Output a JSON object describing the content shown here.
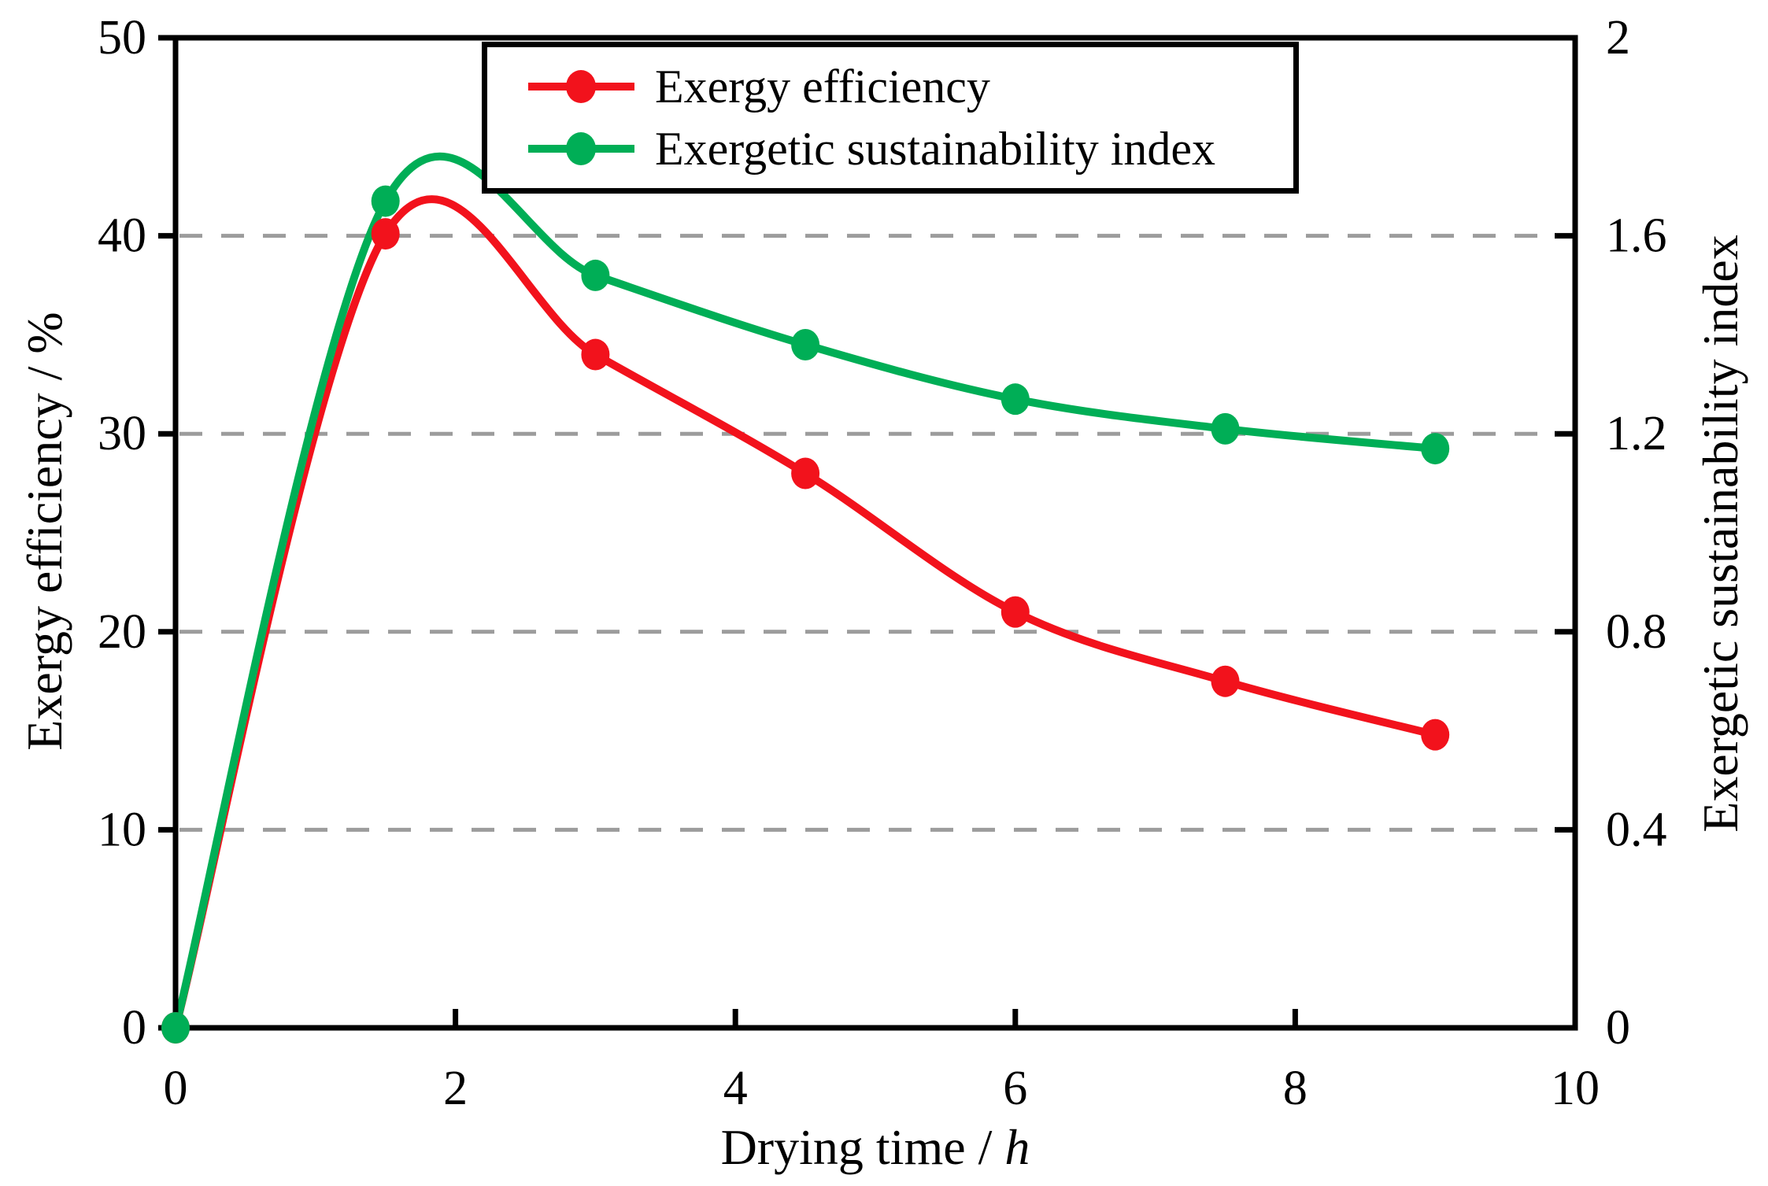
{
  "chart_data": {
    "type": "line",
    "x": [
      0,
      1.5,
      3,
      4.5,
      6,
      7.5,
      9
    ],
    "series": [
      {
        "name": "Exergy efficiency",
        "axis": "left",
        "color": "#F2121C",
        "values": [
          0,
          40.1,
          34.0,
          28.0,
          21.0,
          17.5,
          14.8
        ]
      },
      {
        "name": "Exergetic sustainability index",
        "axis": "right",
        "color": "#00AE56",
        "values": [
          0,
          1.67,
          1.52,
          1.38,
          1.27,
          1.21,
          1.17
        ]
      }
    ],
    "axes": {
      "x": {
        "title_prefix": "Drying time / ",
        "title_unit": "h",
        "lim": [
          0,
          10
        ],
        "ticks": [
          0,
          2,
          4,
          6,
          8,
          10
        ]
      },
      "y_left": {
        "title": "Exergy efficiency / %",
        "lim": [
          0,
          50
        ],
        "ticks": [
          0,
          10,
          20,
          30,
          40,
          50
        ]
      },
      "y_right": {
        "title": "Exergetic sustainability index",
        "lim": [
          0,
          2
        ],
        "ticks": [
          0,
          0.4,
          0.8,
          1.2,
          1.6,
          2
        ]
      }
    },
    "gridlines": {
      "left_values": [
        10,
        20,
        30,
        40
      ],
      "color": "#9C9C9C",
      "style": "dashed"
    },
    "legend": {
      "position": "top-center",
      "entries": [
        "Exergy efficiency",
        "Exergetic sustainability index"
      ]
    }
  }
}
